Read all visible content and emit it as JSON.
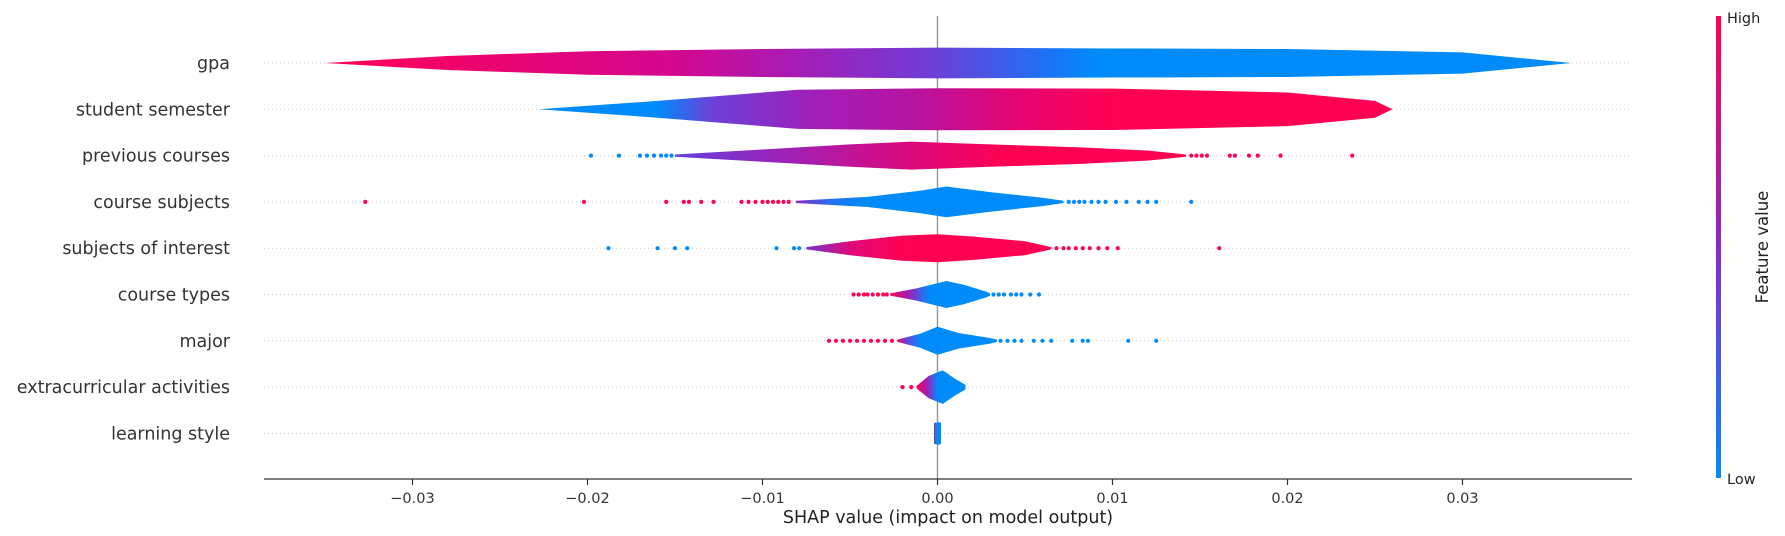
{
  "chart_data": {
    "type": "violin",
    "xlabel": "SHAP value (impact on model output)",
    "xlim": [
      -0.0385,
      0.04
    ],
    "x_ticks": [
      -0.03,
      -0.02,
      -0.01,
      0.0,
      0.01,
      0.02,
      0.03
    ],
    "x_tick_labels": [
      "−0.03",
      "−0.02",
      "−0.01",
      "0.00",
      "0.01",
      "0.02",
      "0.03"
    ],
    "grid": "horizontal dotted per feature row",
    "colorbar": {
      "title": "Feature value",
      "high_label": "High",
      "low_label": "Low",
      "low_color": "#008bfb",
      "high_color": "#ff0051"
    },
    "colors": {
      "low": "#008bfb",
      "mid": "#a81bb5",
      "high": "#ff0052",
      "axis": "#333333",
      "zero_line": "#999999"
    },
    "features": [
      {
        "name": "gpa",
        "profile": [
          [
            -0.035,
            0.0
          ],
          [
            -0.028,
            0.25
          ],
          [
            -0.02,
            0.42
          ],
          [
            -0.01,
            0.5
          ],
          [
            0.0,
            0.55
          ],
          [
            0.01,
            0.52
          ],
          [
            0.02,
            0.5
          ],
          [
            0.03,
            0.38
          ],
          [
            0.0362,
            0.0
          ]
        ],
        "colors": [
          [
            -0.035,
            "#ff0054"
          ],
          [
            -0.015,
            "#d3078f"
          ],
          [
            -0.008,
            "#a51cb6"
          ],
          [
            0.0,
            "#6d3fd8"
          ],
          [
            0.006,
            "#2070f5"
          ],
          [
            0.009,
            "#008bfb"
          ],
          [
            0.0362,
            "#008bfb"
          ]
        ],
        "dots_low": [],
        "dots_high": []
      },
      {
        "name": "student semester",
        "profile": [
          [
            -0.0228,
            0.0
          ],
          [
            -0.016,
            0.3
          ],
          [
            -0.008,
            0.7
          ],
          [
            0.0,
            0.75
          ],
          [
            0.01,
            0.74
          ],
          [
            0.02,
            0.6
          ],
          [
            0.025,
            0.3
          ],
          [
            0.026,
            0.0
          ]
        ],
        "colors": [
          [
            -0.0228,
            "#008bfb"
          ],
          [
            -0.016,
            "#008bfb"
          ],
          [
            -0.013,
            "#6a42d9"
          ],
          [
            -0.007,
            "#a01eb7"
          ],
          [
            -0.001,
            "#b9139f"
          ],
          [
            0.004,
            "#e10676"
          ],
          [
            0.01,
            "#ff0052"
          ],
          [
            0.026,
            "#ff0052"
          ]
        ],
        "dots_low": [],
        "dots_high": []
      },
      {
        "name": "previous courses",
        "profile": [
          [
            -0.015,
            0.04
          ],
          [
            -0.01,
            0.22
          ],
          [
            -0.005,
            0.4
          ],
          [
            -0.0015,
            0.5
          ],
          [
            0.003,
            0.4
          ],
          [
            0.008,
            0.3
          ],
          [
            0.012,
            0.18
          ],
          [
            0.0142,
            0.04
          ]
        ],
        "colors": [
          [
            -0.015,
            "#6242dc"
          ],
          [
            -0.009,
            "#9a22b8"
          ],
          [
            -0.004,
            "#c8108f"
          ],
          [
            0.0,
            "#e50671"
          ],
          [
            0.004,
            "#ff0052"
          ],
          [
            0.0142,
            "#ff0052"
          ]
        ],
        "dots_low": [
          -0.0198,
          -0.0182,
          -0.017,
          -0.0166,
          -0.0162,
          -0.0158,
          -0.0155,
          -0.0152
        ],
        "dots_high": [
          0.0145,
          0.0148,
          0.0151,
          0.0154,
          0.0167,
          0.017,
          0.0178,
          0.0183,
          0.0196,
          0.0237
        ]
      },
      {
        "name": "course subjects",
        "profile": [
          [
            -0.0081,
            0.04
          ],
          [
            -0.004,
            0.18
          ],
          [
            -0.001,
            0.4
          ],
          [
            0.0005,
            0.55
          ],
          [
            0.003,
            0.35
          ],
          [
            0.006,
            0.15
          ],
          [
            0.0072,
            0.04
          ]
        ],
        "colors": [
          [
            -0.0081,
            "#8a2ac4"
          ],
          [
            -0.006,
            "#1e72f2"
          ],
          [
            -0.004,
            "#008bfb"
          ],
          [
            0.0072,
            "#008bfb"
          ]
        ],
        "dots_low": [
          0.0075,
          0.0078,
          0.0081,
          0.0084,
          0.0088,
          0.0092,
          0.0096,
          0.0102,
          0.0108,
          0.0115,
          0.012,
          0.0125,
          0.0145
        ],
        "dots_high": [
          -0.0327,
          -0.0202,
          -0.0155,
          -0.0145,
          -0.0142,
          -0.0135,
          -0.0128,
          -0.0112,
          -0.0108,
          -0.0104,
          -0.01,
          -0.0097,
          -0.0094,
          -0.0091,
          -0.0088,
          -0.0085
        ]
      },
      {
        "name": "subjects of interest",
        "profile": [
          [
            -0.0075,
            0.04
          ],
          [
            -0.005,
            0.25
          ],
          [
            -0.002,
            0.45
          ],
          [
            0.0,
            0.5
          ],
          [
            0.002,
            0.42
          ],
          [
            0.005,
            0.25
          ],
          [
            0.0065,
            0.04
          ]
        ],
        "colors": [
          [
            -0.0075,
            "#7634cc"
          ],
          [
            -0.005,
            "#dd0a7a"
          ],
          [
            -0.002,
            "#ff0052"
          ],
          [
            0.0065,
            "#ff0052"
          ]
        ],
        "dots_low": [
          -0.0188,
          -0.016,
          -0.015,
          -0.0143,
          -0.0092,
          -0.0082,
          -0.0079
        ],
        "dots_high": [
          0.0068,
          0.0072,
          0.0075,
          0.0079,
          0.0083,
          0.0087,
          0.0092,
          0.0097,
          0.0103,
          0.0161
        ]
      },
      {
        "name": "course types",
        "profile": [
          [
            -0.0027,
            0.04
          ],
          [
            -0.0012,
            0.22
          ],
          [
            0.0005,
            0.48
          ],
          [
            0.0015,
            0.35
          ],
          [
            0.0028,
            0.1
          ],
          [
            0.003,
            0.04
          ]
        ],
        "colors": [
          [
            -0.0027,
            "#ff0052"
          ],
          [
            -0.0015,
            "#8a2ac4"
          ],
          [
            -0.0005,
            "#008bfb"
          ],
          [
            0.003,
            "#008bfb"
          ]
        ],
        "dots_low": [
          0.0032,
          0.0035,
          0.0038,
          0.0042,
          0.0045,
          0.0048,
          0.0053,
          0.0058
        ],
        "dots_high": [
          -0.0048,
          -0.0045,
          -0.0042,
          -0.004,
          -0.0037,
          -0.0034,
          -0.0031,
          -0.0029
        ]
      },
      {
        "name": "major",
        "profile": [
          [
            -0.0023,
            0.04
          ],
          [
            -0.001,
            0.25
          ],
          [
            0.0,
            0.5
          ],
          [
            0.0012,
            0.28
          ],
          [
            0.003,
            0.1
          ],
          [
            0.0034,
            0.04
          ]
        ],
        "colors": [
          [
            -0.0023,
            "#ff0052"
          ],
          [
            -0.0018,
            "#6a42d9"
          ],
          [
            -0.001,
            "#008bfb"
          ],
          [
            0.0034,
            "#008bfb"
          ]
        ],
        "dots_low": [
          0.0036,
          0.004,
          0.0044,
          0.0048,
          0.0055,
          0.006,
          0.0065,
          0.0077,
          0.0083,
          0.0086,
          0.0109,
          0.0125
        ],
        "dots_high": [
          -0.0062,
          -0.0058,
          -0.0054,
          -0.005,
          -0.0046,
          -0.0042,
          -0.0038,
          -0.0034,
          -0.003,
          -0.0026
        ]
      },
      {
        "name": "extracurricular activities",
        "profile": [
          [
            -0.0012,
            0.04
          ],
          [
            -0.0005,
            0.4
          ],
          [
            0.0003,
            0.6
          ],
          [
            0.001,
            0.3
          ],
          [
            0.0016,
            0.08
          ]
        ],
        "colors": [
          [
            -0.0012,
            "#ff0052"
          ],
          [
            -0.0006,
            "#a51cb6"
          ],
          [
            0.0,
            "#008bfb"
          ],
          [
            0.0016,
            "#008bfb"
          ]
        ],
        "dots_low": [],
        "dots_high": [
          -0.002,
          -0.0015
        ]
      },
      {
        "name": "learning style",
        "profile": [
          [
            -0.0002,
            0.38
          ],
          [
            0.0001,
            0.4
          ],
          [
            0.0002,
            0.38
          ]
        ],
        "colors": [
          [
            -0.0002,
            "#ff0052"
          ],
          [
            -0.0001,
            "#008bfb"
          ],
          [
            0.0002,
            "#008bfb"
          ]
        ],
        "dots_low": [],
        "dots_high": []
      }
    ]
  }
}
